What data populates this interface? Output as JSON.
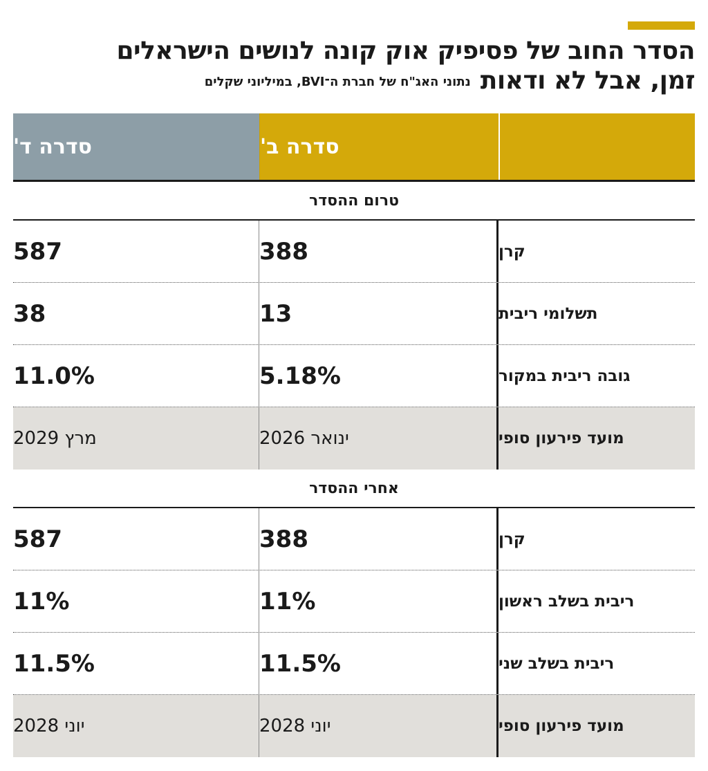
{
  "title": {
    "line1": "הסדר החוב של פסיפיק אוק קונה לנושים הישראלים",
    "line2": "זמן, אבל לא ודאות",
    "subtitle": "נתוני האג\"ח של חברת ה־BVI, במיליוני שקלים"
  },
  "colors": {
    "accent": "#d4a90a",
    "series_d": "#8d9ea7",
    "shaded_row": "#e1dfdb"
  },
  "columns": {
    "series_b": "סדרה ב'",
    "series_d": "סדרה ד'"
  },
  "sections": [
    {
      "title": "טרום ההסדר",
      "rows": [
        {
          "label": "קרן",
          "b": "388",
          "d": "587",
          "shaded": false,
          "date": false
        },
        {
          "label": "תשלומי ריבית",
          "b": "13",
          "d": "38",
          "shaded": false,
          "date": false
        },
        {
          "label": "גובה ריבית במקור",
          "b": "5.18%",
          "d": "11.0%",
          "shaded": false,
          "date": false
        },
        {
          "label": "מועד פירעון סופי",
          "b": "ינואר 2026",
          "d": "מרץ 2029",
          "shaded": true,
          "date": true
        }
      ]
    },
    {
      "title": "אחרי ההסדר",
      "rows": [
        {
          "label": "קרן",
          "b": "388",
          "d": "587",
          "shaded": false,
          "date": false
        },
        {
          "label": "ריבית בשלב ראשון",
          "b": "11%",
          "d": "11%",
          "shaded": false,
          "date": false
        },
        {
          "label": "ריבית בשלב שני",
          "b": "11.5%",
          "d": "11.5%",
          "shaded": false,
          "date": false
        },
        {
          "label": "מועד פירעון סופי",
          "b": "יוני 2028",
          "d": "יוני 2028",
          "shaded": true,
          "date": true
        }
      ]
    }
  ]
}
